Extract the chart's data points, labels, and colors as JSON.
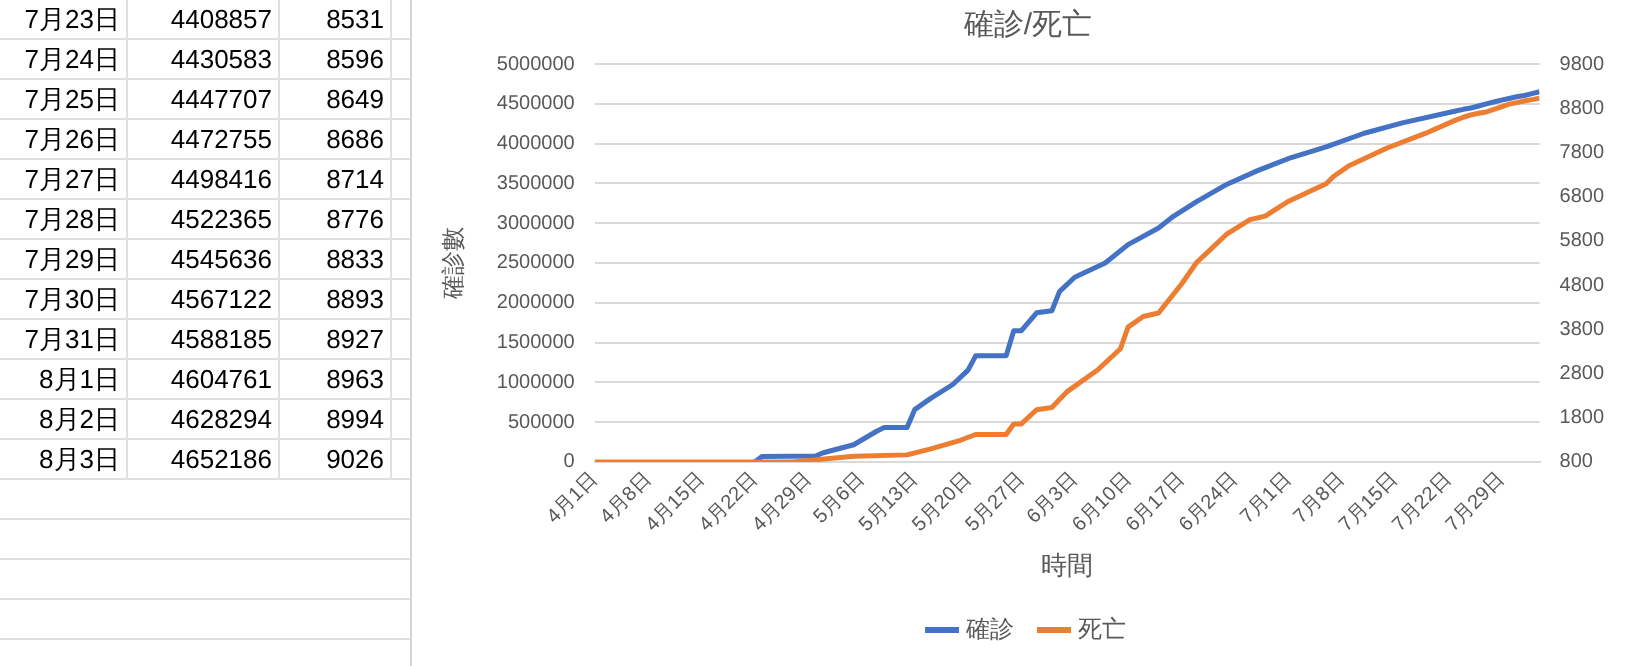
{
  "chart_data": {
    "type": "line",
    "title": "確診/死亡",
    "xlabel": "時間",
    "ylabel": "確診數",
    "annotations": [
      "7月23日 4408857 8531",
      "7月24日 4430583 8596",
      "7月25日 4447707 8649",
      "7月26日 4472755 8686",
      "7月27日 4498416 8714",
      "7月28日 4522365 8776",
      "7月29日 4545636 8833",
      "7月30日 4567122 8893",
      "7月31日 4588185 8927",
      "8月1日 4604761 8963",
      "8月2日 4628294 8994",
      "8月3日 4652186 9026"
    ],
    "xlim": [
      "--04-01",
      "--08-03"
    ],
    "xticks": [
      {
        "value": "--04-01",
        "label": "4月1日"
      },
      {
        "value": "--04-08",
        "label": "4月8日"
      },
      {
        "value": "--04-15",
        "label": "4月15日"
      },
      {
        "value": "--04-22",
        "label": "4月22日"
      },
      {
        "value": "--04-29",
        "label": "4月29日"
      },
      {
        "value": "--05-06",
        "label": "5月6日"
      },
      {
        "value": "--05-13",
        "label": "5月13日"
      },
      {
        "value": "--05-20",
        "label": "5月20日"
      },
      {
        "value": "--05-27",
        "label": "5月27日"
      },
      {
        "value": "--06-03",
        "label": "6月3日"
      },
      {
        "value": "--06-10",
        "label": "6月10日"
      },
      {
        "value": "--06-17",
        "label": "6月17日"
      },
      {
        "value": "--06-24",
        "label": "6月24日"
      },
      {
        "value": "--07-01",
        "label": "7月1日"
      },
      {
        "value": "--07-08",
        "label": "7月8日"
      },
      {
        "value": "--07-15",
        "label": "7月15日"
      },
      {
        "value": "--07-22",
        "label": "7月22日"
      },
      {
        "value": "--07-29",
        "label": "7月29日"
      }
    ],
    "ylim": [
      0,
      5000000
    ],
    "yticks": [
      0,
      500000,
      1000000,
      1500000,
      2000000,
      2500000,
      3000000,
      3500000,
      4000000,
      4500000,
      5000000
    ],
    "y2lim": [
      800,
      9800
    ],
    "y2ticks": [
      800,
      1800,
      2800,
      3800,
      4800,
      5800,
      6800,
      7800,
      8800,
      9800
    ],
    "grid": "y",
    "legend": "bottom",
    "marker": "none",
    "line_style": "solid",
    "series": [
      {
        "name": "確診",
        "color": "#4472c4",
        "x": [
          "--04-22",
          "--04-23",
          "--04-30",
          "--05-01",
          "--05-05",
          "--05-08",
          "--05-09",
          "--05-12",
          "--05-13",
          "--05-15",
          "--05-18",
          "--05-20",
          "--05-21",
          "--05-25",
          "--05-26",
          "--05-27",
          "--05-29",
          "--05-31",
          "--06-01",
          "--06-03",
          "--06-07",
          "--06-10",
          "--06-14",
          "--06-16",
          "--06-19",
          "--06-23",
          "--06-27",
          "--07-01",
          "--07-06",
          "--07-11",
          "--07-16",
          "--07-23",
          "--07-24",
          "--07-25",
          "--07-26",
          "--07-27",
          "--07-28",
          "--07-29",
          "--07-30",
          "--07-31",
          "--08-01",
          "--08-02",
          "--08-03"
        ],
        "values": [
          0,
          70000,
          75000,
          116000,
          216000,
          386000,
          432000,
          432000,
          657000,
          792000,
          973000,
          1153000,
          1333000,
          1333000,
          1649000,
          1649000,
          1874000,
          1900000,
          2140000,
          2320000,
          2500000,
          2730000,
          2940000,
          3090000,
          3270000,
          3490000,
          3660000,
          3810000,
          3960000,
          4130000,
          4260000,
          4408857,
          4430583,
          4447707,
          4472755,
          4498416,
          4522365,
          4545636,
          4567122,
          4588185,
          4604761,
          4628294,
          4652186
        ]
      },
      {
        "name": "死亡",
        "color": "#ed7d31",
        "axis": "y2",
        "x": [
          "--04-01",
          "--04-27",
          "--05-05",
          "--05-12",
          "--05-15",
          "--05-19",
          "--05-21",
          "--05-25",
          "--05-26",
          "--05-27",
          "--05-29",
          "--05-31",
          "--06-02",
          "--06-06",
          "--06-09",
          "--06-10",
          "--06-12",
          "--06-14",
          "--06-17",
          "--06-19",
          "--06-23",
          "--06-26",
          "--06-28",
          "--07-01",
          "--07-06",
          "--07-07",
          "--07-09",
          "--07-14",
          "--07-19",
          "--07-23",
          "--07-24",
          "--07-25",
          "--07-26",
          "--07-27",
          "--07-28",
          "--07-29",
          "--07-30",
          "--07-31",
          "--08-01",
          "--08-02",
          "--08-03"
        ],
        "values": [
          800,
          800,
          930,
          960,
          1090,
          1290,
          1420,
          1420,
          1660,
          1660,
          1980,
          2030,
          2390,
          2880,
          3360,
          3850,
          4090,
          4170,
          4820,
          5310,
          5960,
          6280,
          6360,
          6690,
          7090,
          7260,
          7500,
          7900,
          8230,
          8531,
          8596,
          8649,
          8686,
          8714,
          8776,
          8833,
          8893,
          8927,
          8963,
          8994,
          9026
        ]
      }
    ]
  }
}
